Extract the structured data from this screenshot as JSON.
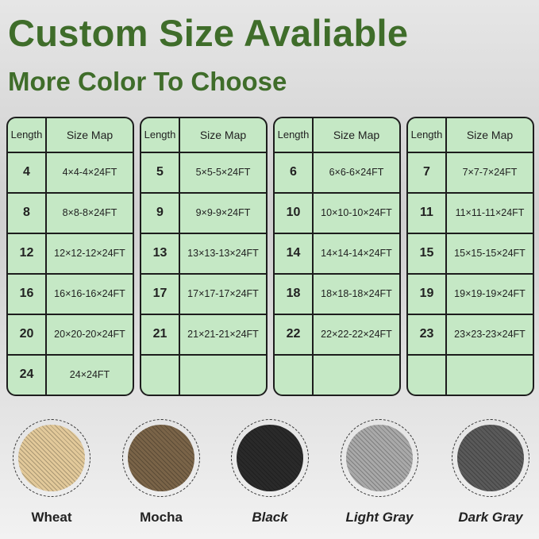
{
  "title": "Custom Size Avaliable",
  "subtitle": "More Color To Choose",
  "header": {
    "length": "Length",
    "size_map": "Size Map"
  },
  "tables": [
    [
      [
        "4",
        "4×4-4×24FT"
      ],
      [
        "8",
        "8×8-8×24FT"
      ],
      [
        "12",
        "12×12-12×24FT"
      ],
      [
        "16",
        "16×16-16×24FT"
      ],
      [
        "20",
        "20×20-20×24FT"
      ],
      [
        "24",
        "24×24FT"
      ]
    ],
    [
      [
        "5",
        "5×5-5×24FT"
      ],
      [
        "9",
        "9×9-9×24FT"
      ],
      [
        "13",
        "13×13-13×24FT"
      ],
      [
        "17",
        "17×17-17×24FT"
      ],
      [
        "21",
        "21×21-21×24FT"
      ],
      [
        "",
        ""
      ]
    ],
    [
      [
        "6",
        "6×6-6×24FT"
      ],
      [
        "10",
        "10×10-10×24FT"
      ],
      [
        "14",
        "14×14-14×24FT"
      ],
      [
        "18",
        "18×18-18×24FT"
      ],
      [
        "22",
        "22×22-22×24FT"
      ],
      [
        "",
        ""
      ]
    ],
    [
      [
        "7",
        "7×7-7×24FT"
      ],
      [
        "11",
        "11×11-11×24FT"
      ],
      [
        "15",
        "15×15-15×24FT"
      ],
      [
        "19",
        "19×19-19×24FT"
      ],
      [
        "23",
        "23×23-23×24FT"
      ],
      [
        "",
        ""
      ]
    ]
  ],
  "colors": [
    {
      "name": "Wheat",
      "hex": "#e2c99a",
      "italic": false
    },
    {
      "name": "Mocha",
      "hex": "#7a6448",
      "italic": false
    },
    {
      "name": "Black",
      "hex": "#2a2a2a",
      "italic": true
    },
    {
      "name": "Light Gray",
      "hex": "#a9a9a9",
      "italic": true
    },
    {
      "name": "Dark Gray",
      "hex": "#5a5a5a",
      "italic": true
    }
  ],
  "title_color": "#3f6d2a"
}
